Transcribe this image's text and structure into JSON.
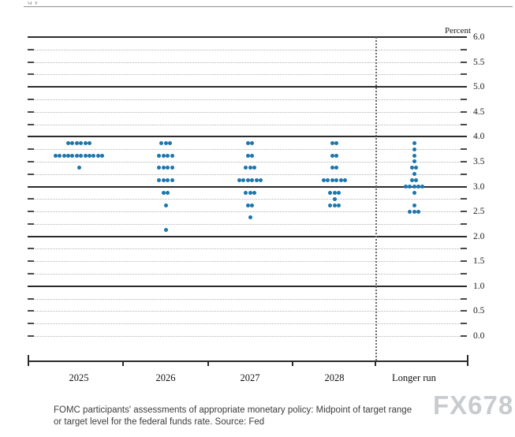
{
  "chart_data": {
    "type": "scatter",
    "subtype": "fomc-dot-plot",
    "title": "",
    "unit_label": "Percent",
    "y_axis": {
      "min": 0.0,
      "max": 6.0,
      "label_step": 0.5,
      "grid_step": 0.25,
      "solid_line_values": [
        6.0,
        5.0,
        4.0,
        3.0,
        2.0,
        1.0
      ],
      "tick_labels": [
        "6.0",
        "5.5",
        "5.0",
        "4.5",
        "4.0",
        "3.5",
        "3.0",
        "2.5",
        "2.0",
        "1.5",
        "1.0",
        "0.5",
        "0.0"
      ]
    },
    "categories": [
      "2025",
      "2026",
      "2027",
      "2028",
      "Longer run"
    ],
    "separator_after_category": "2028",
    "dot_color": "#1b76ad",
    "series": [
      {
        "category": "2025",
        "dots": [
          {
            "rate": 3.875,
            "count": 6
          },
          {
            "rate": 3.625,
            "count": 12
          },
          {
            "rate": 3.375,
            "count": 1
          }
        ]
      },
      {
        "category": "2026",
        "dots": [
          {
            "rate": 3.875,
            "count": 3
          },
          {
            "rate": 3.625,
            "count": 4
          },
          {
            "rate": 3.375,
            "count": 4
          },
          {
            "rate": 3.125,
            "count": 4
          },
          {
            "rate": 2.875,
            "count": 2
          },
          {
            "rate": 2.625,
            "count": 1
          },
          {
            "rate": 2.125,
            "count": 1
          }
        ]
      },
      {
        "category": "2027",
        "dots": [
          {
            "rate": 3.875,
            "count": 2
          },
          {
            "rate": 3.625,
            "count": 2
          },
          {
            "rate": 3.375,
            "count": 3
          },
          {
            "rate": 3.125,
            "count": 6
          },
          {
            "rate": 2.875,
            "count": 3
          },
          {
            "rate": 2.625,
            "count": 2
          },
          {
            "rate": 2.375,
            "count": 1
          }
        ]
      },
      {
        "category": "2028",
        "dots": [
          {
            "rate": 3.875,
            "count": 2
          },
          {
            "rate": 3.625,
            "count": 2
          },
          {
            "rate": 3.375,
            "count": 2
          },
          {
            "rate": 3.125,
            "count": 6
          },
          {
            "rate": 2.875,
            "count": 3
          },
          {
            "rate": 2.75,
            "count": 1
          },
          {
            "rate": 2.625,
            "count": 3
          }
        ]
      },
      {
        "category": "Longer run",
        "dots": [
          {
            "rate": 3.875,
            "count": 1
          },
          {
            "rate": 3.75,
            "count": 1
          },
          {
            "rate": 3.625,
            "count": 1
          },
          {
            "rate": 3.5,
            "count": 1
          },
          {
            "rate": 3.375,
            "count": 2
          },
          {
            "rate": 3.25,
            "count": 1
          },
          {
            "rate": 3.125,
            "count": 2
          },
          {
            "rate": 3.0,
            "count": 5
          },
          {
            "rate": 2.875,
            "count": 1
          },
          {
            "rate": 2.625,
            "count": 1
          },
          {
            "rate": 2.5,
            "count": 3
          }
        ]
      }
    ]
  },
  "caption": {
    "line1": "FOMC participants' assessments of appropriate monetary policy: Midpoint of target range",
    "line2": "or target level for the federal funds rate. Source: Fed"
  },
  "watermark": {
    "text": "FX678"
  }
}
